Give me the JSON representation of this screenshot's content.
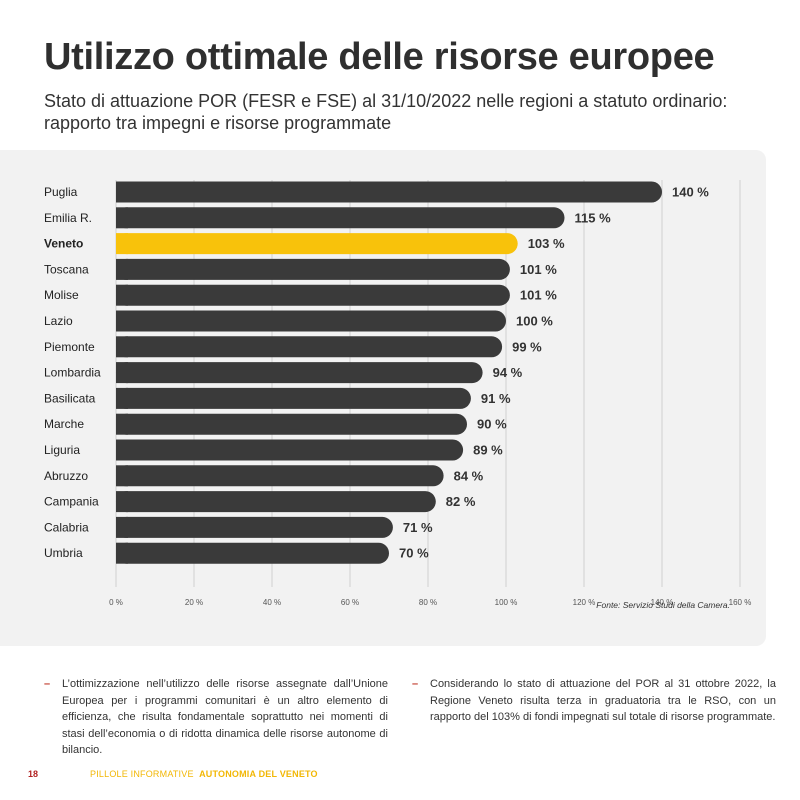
{
  "title": "Utilizzo ottimale delle risorse europee",
  "subtitle": "Stato di attuazione POR (FESR e FSE) al 31/10/2022 nelle regioni a statuto ordinario: rapporto tra impegni e risorse programmate",
  "chart_data": {
    "type": "bar",
    "orientation": "horizontal",
    "categories": [
      "Puglia",
      "Emilia R.",
      "Veneto",
      "Toscana",
      "Molise",
      "Lazio",
      "Piemonte",
      "Lombardia",
      "Basilicata",
      "Marche",
      "Liguria",
      "Abruzzo",
      "Campania",
      "Calabria",
      "Umbria"
    ],
    "values": [
      140,
      115,
      103,
      101,
      101,
      100,
      99,
      94,
      91,
      90,
      89,
      84,
      82,
      71,
      70
    ],
    "value_labels": [
      "140 %",
      "115 %",
      "103 %",
      "101 %",
      "101 %",
      "100 %",
      "99 %",
      "94 %",
      "91 %",
      "90 %",
      "89 %",
      "84 %",
      "82 %",
      "71 %",
      "70 %"
    ],
    "highlight": "Veneto",
    "xlim": [
      0,
      160
    ],
    "xticks": [
      0,
      20,
      40,
      60,
      80,
      100,
      120,
      140,
      160
    ],
    "xtick_labels": [
      "0 %",
      "20 %",
      "40 %",
      "60 %",
      "80 %",
      "100 %",
      "120 %",
      "140 %",
      "160 %"
    ],
    "colors": {
      "bar": "#3a3a3a",
      "highlight": "#f8c20b",
      "grid": "#d0d0d0"
    },
    "source": "Fonte: Servizio Studi della Camera."
  },
  "text": {
    "col1": "L’ottimizzazione nell’utilizzo delle risorse assegnate dall’Unione Europea per i programmi comunitari è un altro elemento di efficienza, che risulta fondamentale soprattutto nei momenti di stasi dell’economia o di ridotta dinamica delle risorse autonome di bilancio.",
    "col2": "Considerando lo stato di attuazione del POR al 31 ottobre 2022, la Regione Veneto risulta terza in graduatoria tra le RSO, con un rapporto del 103% di fondi impegnati sul totale di risorse programmate.",
    "dash": "–"
  },
  "footer": {
    "page": "18",
    "series": "PILLOLE INFORMATIVE",
    "topic": "AUTONOMIA DEL VENETO"
  }
}
